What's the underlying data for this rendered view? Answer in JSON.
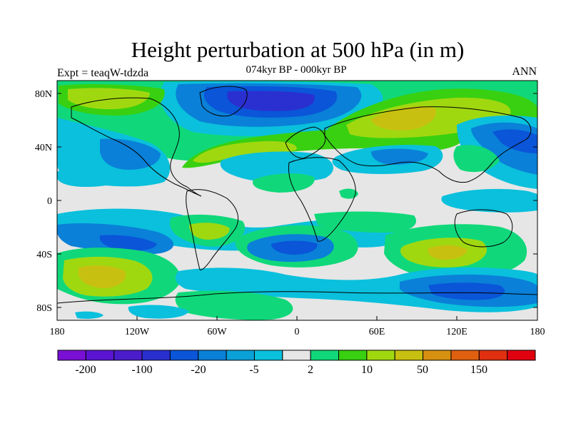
{
  "header": {
    "title": "Height perturbation at 500 hPa (in m)",
    "subtitle": "074kyr BP - 000kyr BP",
    "experiment": "Expt = teaqW-tdzda",
    "period": "ANN"
  },
  "map": {
    "type": "global-contour-fill",
    "lon_range": [
      -180,
      180
    ],
    "lat_range": [
      -90,
      90
    ],
    "lat_ticks": [
      "80N",
      "40N",
      "0",
      "40S",
      "80S"
    ],
    "lon_ticks": [
      "180",
      "120W",
      "60W",
      "0",
      "60E",
      "120E",
      "180"
    ],
    "background": "#e6e6e6"
  },
  "colorbar": {
    "labels": [
      "-200",
      "-100",
      "-20",
      "-5",
      "2",
      "10",
      "50",
      "150"
    ],
    "colors": [
      "#7a10d6",
      "#5b14d2",
      "#4a1ccc",
      "#2a2fd0",
      "#0a55d8",
      "#0a80d8",
      "#0aa0d8",
      "#0ac0dc",
      "#e6e6e6",
      "#10d87a",
      "#38d010",
      "#a0d810",
      "#c8c010",
      "#d89010",
      "#e06010",
      "#e03010",
      "#e00010"
    ]
  }
}
